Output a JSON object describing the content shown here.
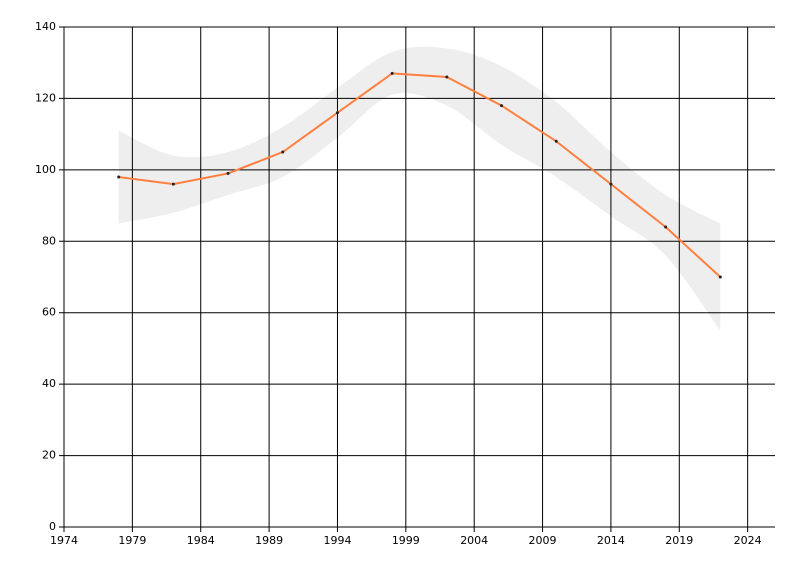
{
  "chart_data": {
    "type": "line",
    "x": [
      1978,
      1982,
      1986,
      1990,
      1994,
      1998,
      2002,
      2006,
      2010,
      2014,
      2018,
      2022
    ],
    "series": [
      {
        "color": "#ff7f3f",
        "values": [
          98,
          96,
          99,
          105,
          116,
          127,
          126,
          118,
          108,
          96,
          84,
          70
        ],
        "upper": [
          111,
          104,
          105,
          112,
          123,
          133,
          134,
          129,
          119,
          105,
          93,
          85
        ],
        "lower": [
          85,
          88,
          93,
          98,
          109,
          121,
          118,
          107,
          98,
          87,
          76,
          55
        ]
      }
    ],
    "band_color": "#eeeeee",
    "marker_color": "#222222",
    "xlim": [
      1974,
      2026
    ],
    "xticks": [
      1974,
      1979,
      1984,
      1989,
      1994,
      1999,
      2004,
      2009,
      2014,
      2019,
      2024
    ],
    "ylim": [
      0,
      140
    ],
    "yticks": [
      0,
      20,
      40,
      60,
      80,
      100,
      120,
      140
    ],
    "grid": true
  }
}
